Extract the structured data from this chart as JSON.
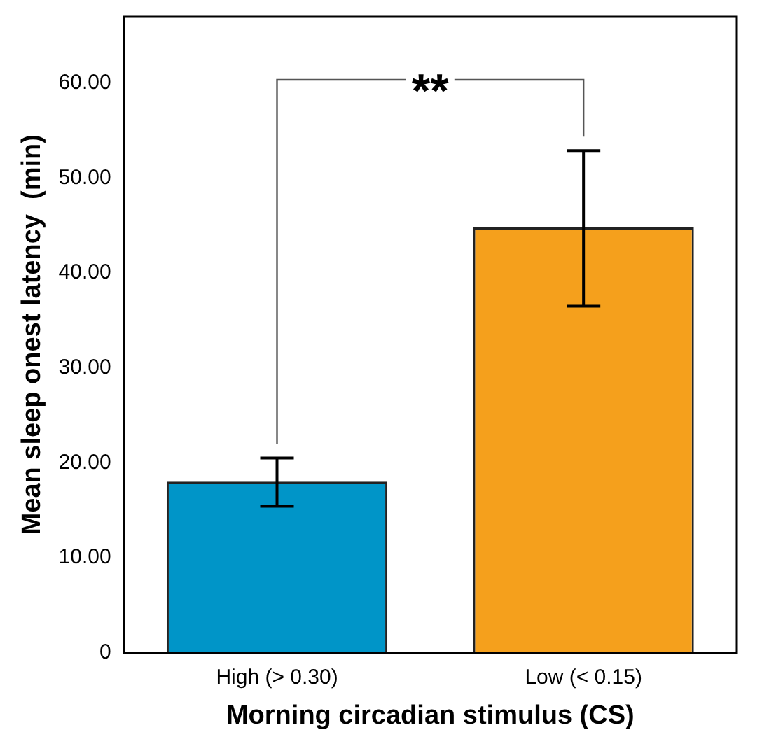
{
  "chart_data": {
    "type": "bar",
    "xlabel": "Morning circadian stimulus (CS)",
    "ylabel": "Mean sleep onest latency  (min)",
    "categories": [
      "High (> 0.30)",
      "Low (< 0.15)"
    ],
    "values": [
      18.0,
      44.8
    ],
    "colors": [
      "#0095c8",
      "#f5a01c"
    ],
    "errors": [
      [
        15.4,
        20.5
      ],
      [
        36.5,
        52.9
      ]
    ],
    "ylim": [
      0,
      67
    ],
    "yticks": [
      0,
      {
        "value": 10,
        "label": "10.00"
      },
      {
        "value": 20,
        "label": "20.00"
      },
      {
        "value": 30,
        "label": "30.00"
      },
      {
        "value": 40,
        "label": "40.00"
      },
      {
        "value": 50,
        "label": "50.00"
      },
      {
        "value": 60,
        "label": "60.00"
      }
    ],
    "annotations": [
      "**"
    ],
    "grid": false,
    "legend": false
  }
}
